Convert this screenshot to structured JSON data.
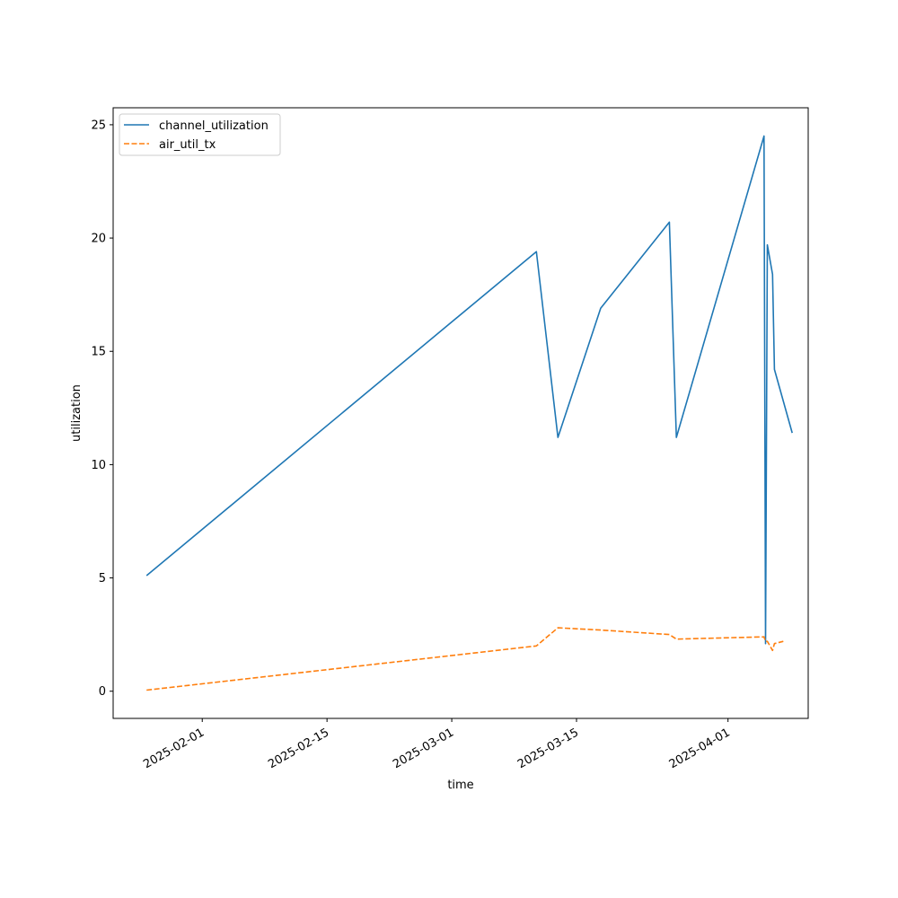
{
  "chart_data": {
    "type": "line",
    "title": "",
    "xlabel": "time",
    "ylabel": "utilization",
    "x_range": [
      "2025-01-22",
      "2025-04-10"
    ],
    "ylim": [
      -1.2,
      25.75
    ],
    "grid": false,
    "legend_position": "upper-left",
    "x_ticks": [
      "2025-02-01",
      "2025-02-15",
      "2025-03-01",
      "2025-03-15",
      "2025-04-01"
    ],
    "y_ticks": [
      0,
      5,
      10,
      15,
      20,
      25
    ],
    "series": [
      {
        "name": "channel_utilization",
        "color": "#1f77b4",
        "dash": "solid",
        "points": [
          [
            "2025-01-25T18:00",
            5.1
          ],
          [
            "2025-03-10T12:00",
            19.4
          ],
          [
            "2025-03-12T22:00",
            11.2
          ],
          [
            "2025-03-17T17:00",
            16.9
          ],
          [
            "2025-03-25T10:00",
            20.7
          ],
          [
            "2025-03-26T05:00",
            11.2
          ],
          [
            "2025-04-05T01:00",
            24.5
          ],
          [
            "2025-04-05T05:00",
            2.1
          ],
          [
            "2025-04-05T10:00",
            19.7
          ],
          [
            "2025-04-06T00:00",
            18.4
          ],
          [
            "2025-04-06T05:00",
            14.2
          ],
          [
            "2025-04-08T05:00",
            11.4
          ]
        ]
      },
      {
        "name": "air_util_tx",
        "color": "#ff7f0e",
        "dash": "dashed",
        "points": [
          [
            "2025-01-25T18:00",
            0.05
          ],
          [
            "2025-03-10T12:00",
            2.0
          ],
          [
            "2025-03-12T22:00",
            2.8
          ],
          [
            "2025-03-17T17:00",
            2.7
          ],
          [
            "2025-03-25T10:00",
            2.5
          ],
          [
            "2025-03-26T05:00",
            2.3
          ],
          [
            "2025-04-05T01:00",
            2.4
          ],
          [
            "2025-04-05T05:00",
            2.2
          ],
          [
            "2025-04-05T10:00",
            2.2
          ],
          [
            "2025-04-06T00:00",
            1.8
          ],
          [
            "2025-04-06T05:00",
            2.1
          ],
          [
            "2025-04-07T05:00",
            2.2
          ]
        ]
      }
    ]
  }
}
